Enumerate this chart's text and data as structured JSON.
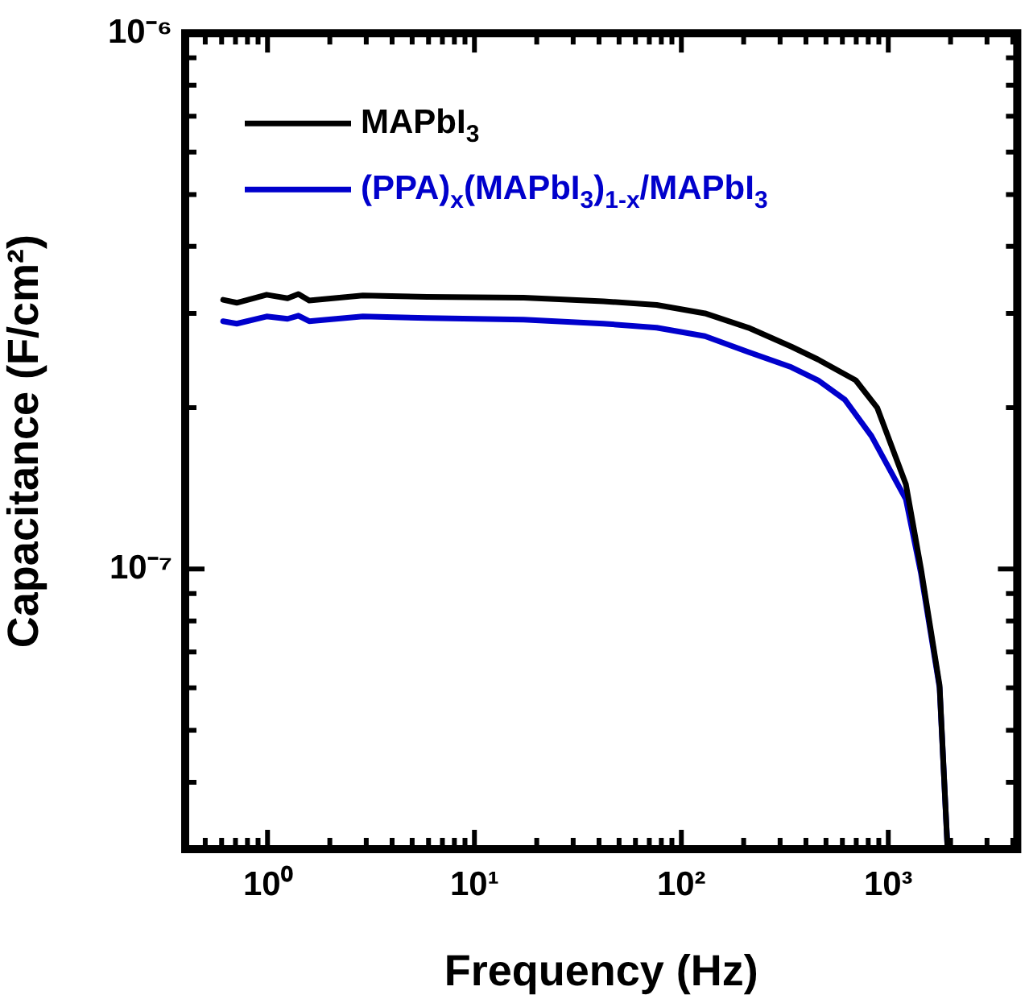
{
  "chart_data": {
    "type": "line",
    "xlabel": "Frequency (Hz)",
    "ylabel": "Capacitance (F/cm²)",
    "log": "xy",
    "grid": false,
    "legend": "top left",
    "marker": "none",
    "line_style": "solid",
    "xlim": [
      0.4,
      4200
    ],
    "ylim": [
      3e-08,
      1e-06
    ],
    "xticks": [
      {
        "value": 0.4,
        "label": null
      },
      {
        "value": 0.5,
        "label": null
      },
      {
        "value": 0.6,
        "label": null
      },
      {
        "value": 0.7,
        "label": null
      },
      {
        "value": 0.8,
        "label": null
      },
      {
        "value": 0.9,
        "label": null
      },
      {
        "value": 1,
        "label": "10⁰"
      },
      {
        "value": 2,
        "label": null
      },
      {
        "value": 3,
        "label": null
      },
      {
        "value": 4,
        "label": null
      },
      {
        "value": 5,
        "label": null
      },
      {
        "value": 6,
        "label": null
      },
      {
        "value": 7,
        "label": null
      },
      {
        "value": 8,
        "label": null
      },
      {
        "value": 9,
        "label": null
      },
      {
        "value": 10,
        "label": "10¹"
      },
      {
        "value": 20,
        "label": null
      },
      {
        "value": 30,
        "label": null
      },
      {
        "value": 40,
        "label": null
      },
      {
        "value": 50,
        "label": null
      },
      {
        "value": 60,
        "label": null
      },
      {
        "value": 70,
        "label": null
      },
      {
        "value": 80,
        "label": null
      },
      {
        "value": 90,
        "label": null
      },
      {
        "value": 100,
        "label": "10²"
      },
      {
        "value": 200,
        "label": null
      },
      {
        "value": 300,
        "label": null
      },
      {
        "value": 400,
        "label": null
      },
      {
        "value": 500,
        "label": null
      },
      {
        "value": 600,
        "label": null
      },
      {
        "value": 700,
        "label": null
      },
      {
        "value": 800,
        "label": null
      },
      {
        "value": 900,
        "label": null
      },
      {
        "value": 1000,
        "label": "10³"
      },
      {
        "value": 2000,
        "label": null
      },
      {
        "value": 3000,
        "label": null
      },
      {
        "value": 4000,
        "label": null
      }
    ],
    "yticks": [
      {
        "value": 4e-08,
        "label": null
      },
      {
        "value": 5e-08,
        "label": null
      },
      {
        "value": 6e-08,
        "label": null
      },
      {
        "value": 7e-08,
        "label": null
      },
      {
        "value": 8e-08,
        "label": null
      },
      {
        "value": 9e-08,
        "label": null
      },
      {
        "value": 1e-07,
        "label": "10⁻⁷"
      },
      {
        "value": 2e-07,
        "label": null
      },
      {
        "value": 3e-07,
        "label": null
      },
      {
        "value": 4e-07,
        "label": null
      },
      {
        "value": 5e-07,
        "label": null
      },
      {
        "value": 6e-07,
        "label": null
      },
      {
        "value": 7e-07,
        "label": null
      },
      {
        "value": 8e-07,
        "label": null
      },
      {
        "value": 9e-07,
        "label": null
      },
      {
        "value": 1e-06,
        "label": "10⁻⁶"
      }
    ],
    "series": [
      {
        "name": "MAPbI$_{3}$",
        "color": "#000000",
        "x": [
          0.61,
          0.71,
          0.99,
          1.25,
          1.41,
          1.59,
          2.89,
          5.9,
          17.3,
          42,
          76,
          130,
          211,
          340,
          458,
          696,
          884,
          1216,
          1440,
          1770,
          1930
        ],
        "values": [
          3.18e-07,
          3.14e-07,
          3.25e-07,
          3.2e-07,
          3.26e-07,
          3.17e-07,
          3.24e-07,
          3.22e-07,
          3.21e-07,
          3.16e-07,
          3.11e-07,
          3e-07,
          2.82e-07,
          2.6e-07,
          2.46e-07,
          2.25e-07,
          2e-07,
          1.44e-07,
          1e-07,
          6.06e-08,
          3.05e-08
        ]
      },
      {
        "name": "(PPA)$_{x}$(MAPbI$_{3}$)$_{1-x}$/MAPbI$_{3}$",
        "color": "#0000cc",
        "x": [
          0.61,
          0.71,
          0.99,
          1.25,
          1.41,
          1.59,
          2.89,
          5.9,
          17.3,
          42,
          76,
          130,
          211,
          340,
          458,
          617,
          830,
          1216,
          1440,
          1770,
          1930
        ],
        "values": [
          2.9e-07,
          2.87e-07,
          2.96e-07,
          2.93e-07,
          2.97e-07,
          2.9e-07,
          2.96e-07,
          2.94e-07,
          2.92e-07,
          2.87e-07,
          2.82e-07,
          2.72e-07,
          2.54e-07,
          2.38e-07,
          2.25e-07,
          2.07e-07,
          1.77e-07,
          1.35e-07,
          9.8e-08,
          6e-08,
          3.05e-08
        ]
      }
    ]
  }
}
